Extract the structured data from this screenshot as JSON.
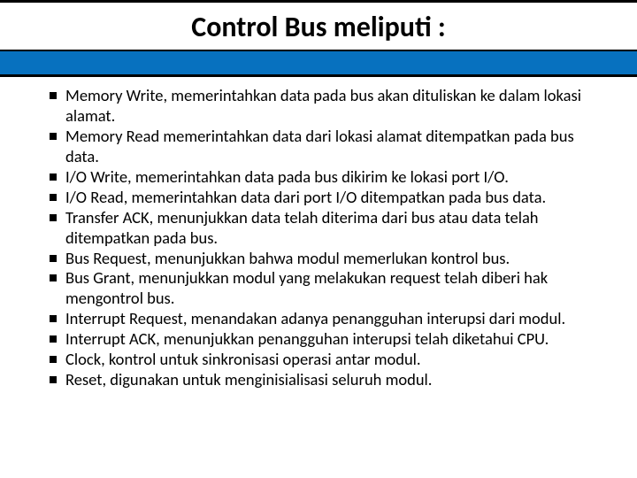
{
  "title": "Control Bus meliputi :",
  "title_fontsize": 32,
  "title_weight": 700,
  "title_color": "#000000",
  "band_color": "#0771bf",
  "background_color": "#ffffff",
  "bullet_marker": "square",
  "bullet_color": "#000000",
  "body_fontsize": 18.5,
  "body_color": "#000000",
  "items": [
    "Memory Write, memerintahkan data pada bus akan dituliskan ke dalam lokasi alamat.",
    "Memory Read memerintahkan data dari lokasi alamat ditempatkan pada bus data.",
    "I/O Write, memerintahkan data pada bus dikirim ke lokasi port I/O.",
    "I/O Read, memerintahkan data dari port I/O ditempatkan pada bus data.",
    "Transfer ACK, menunjukkan data telah diterima dari bus atau data telah ditempatkan pada bus.",
    "Bus Request, menunjukkan bahwa modul memerlukan kontrol bus.",
    "Bus Grant, menunjukkan modul yang melakukan request telah diberi hak mengontrol bus.",
    "Interrupt Request, menandakan adanya penangguhan interupsi dari modul.",
    "Interrupt ACK, menunjukkan penangguhan interupsi telah diketahui CPU.",
    "Clock, kontrol untuk sinkronisasi operasi antar modul.",
    "Reset, digunakan untuk menginisialisasi seluruh modul."
  ]
}
